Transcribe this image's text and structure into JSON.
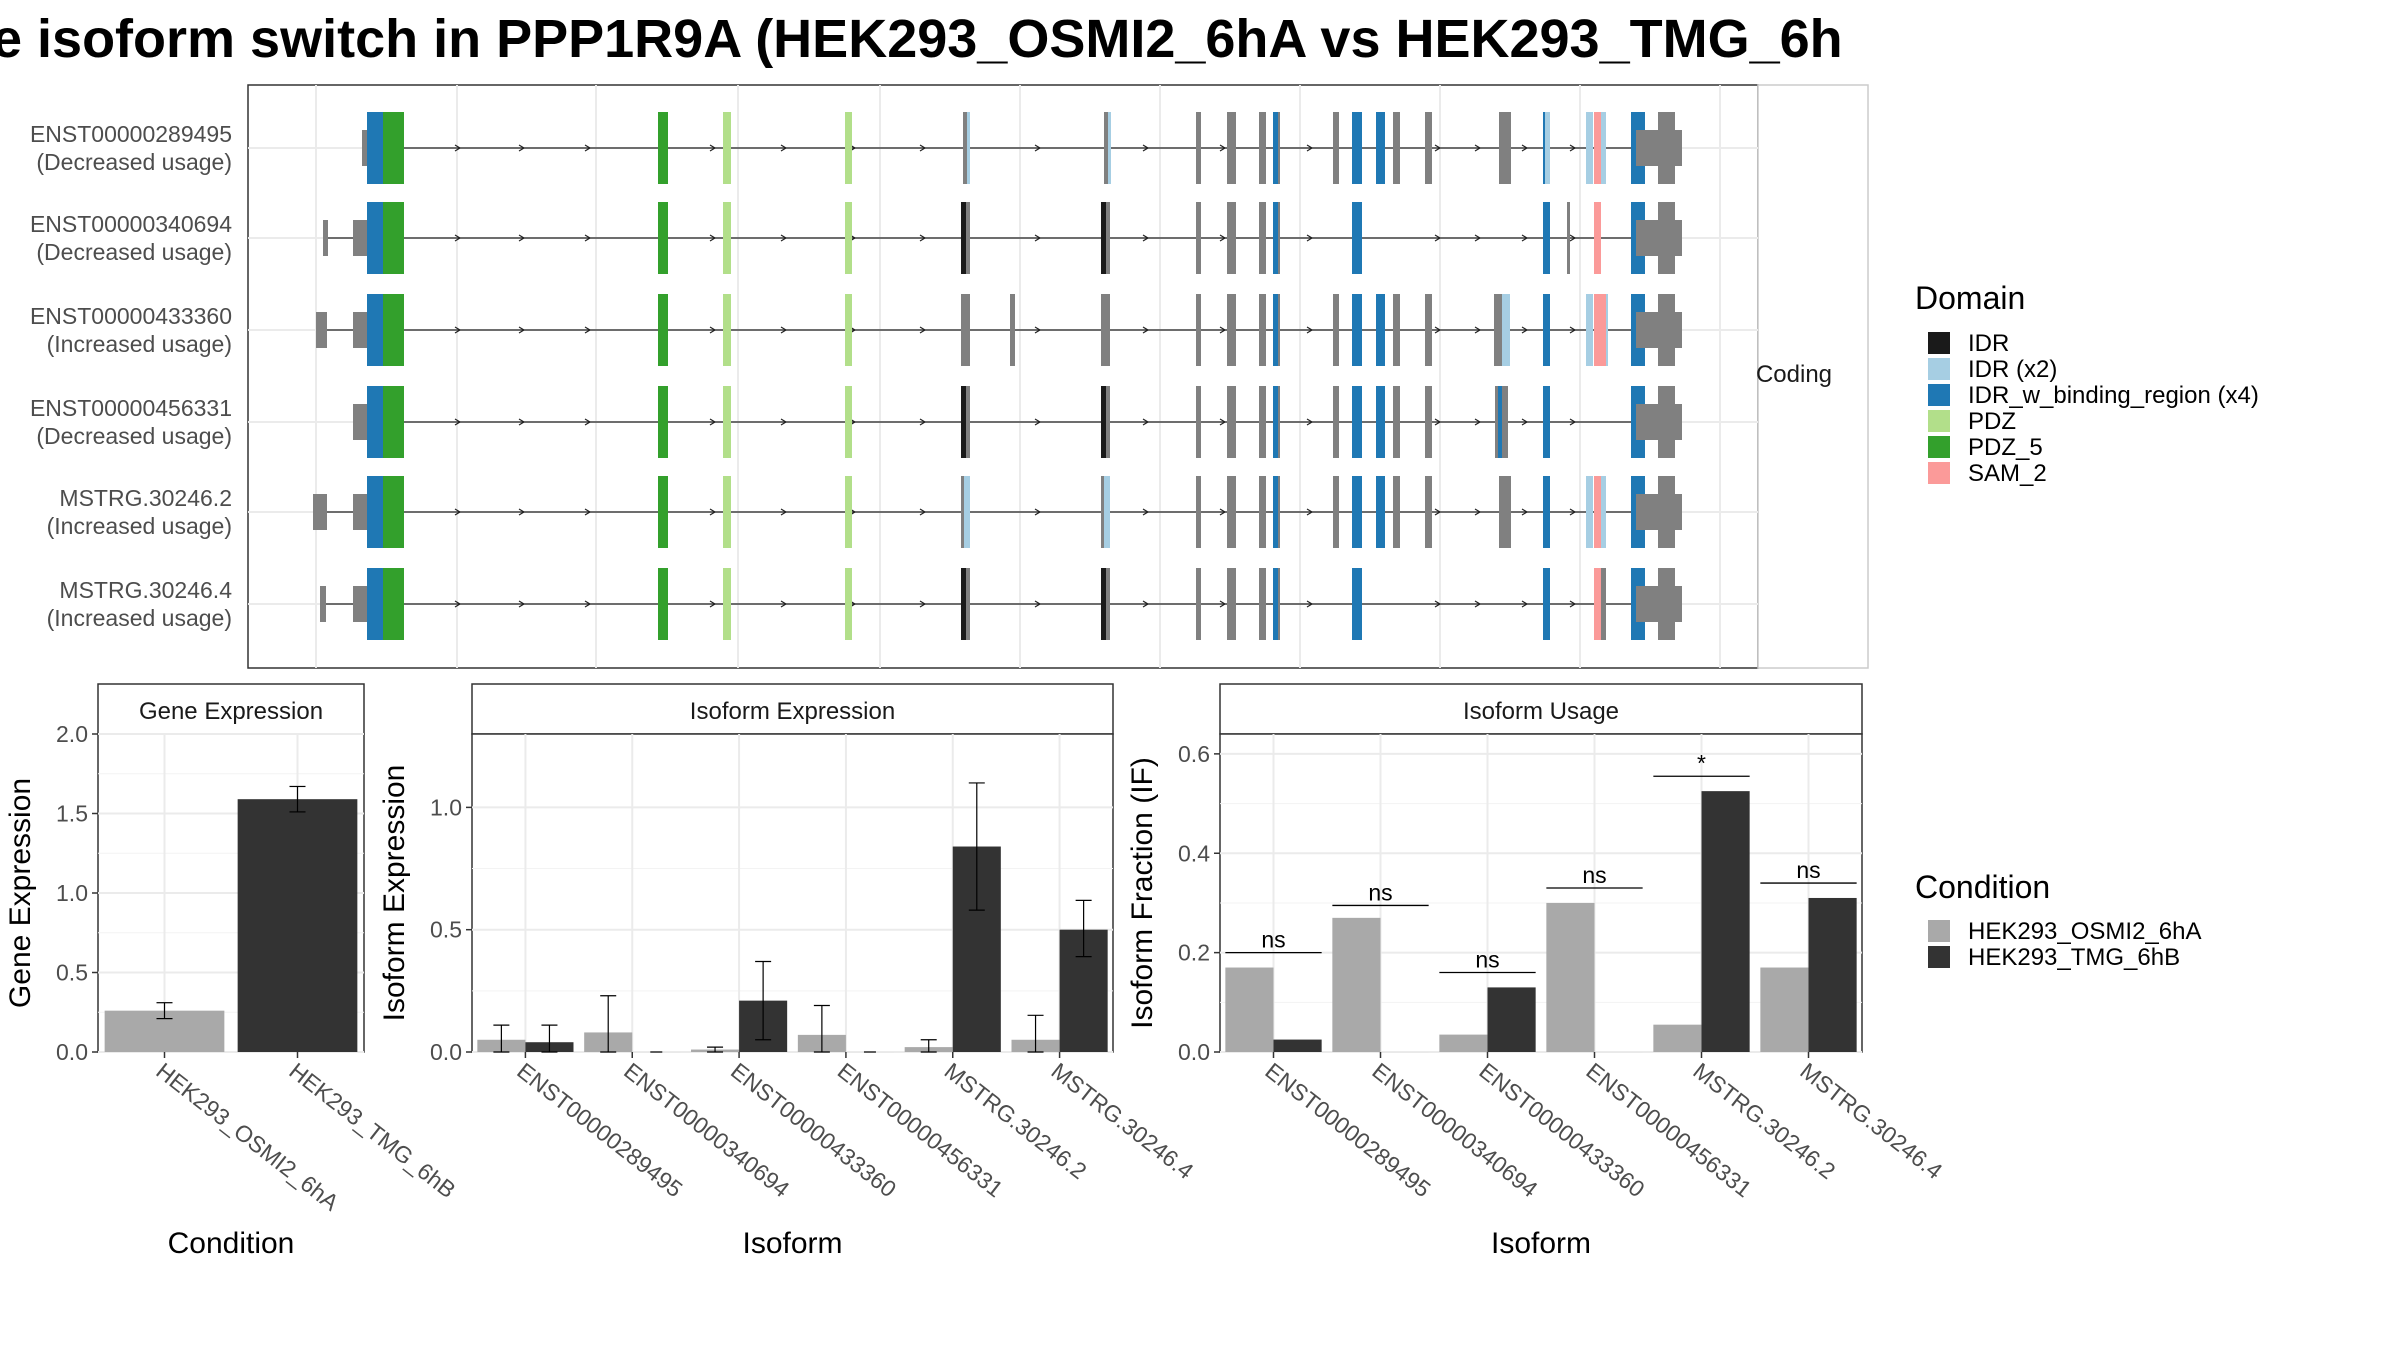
{
  "title": "e isoform switch in PPP1R9A (HEK293_OSMI2_6hA vs HEK293_TMG_6h",
  "colors": {
    "cond_a": "#a9a9a9",
    "cond_b": "#333333",
    "intron": "#222222",
    "exon_utr": "#808080",
    "domains": {
      "IDR": "#1a1a1a",
      "IDR (x2)": "#a6cee3",
      "IDR_w_binding_region (x4)": "#1f78b4",
      "PDZ": "#b2df8a",
      "PDZ_5": "#33a02c",
      "SAM_2": "#fb9a99"
    }
  },
  "structure_panel": {
    "strip_label": "Coding",
    "transcripts": [
      {
        "id": "ENST00000289495",
        "usage": "(Decreased usage)"
      },
      {
        "id": "ENST00000340694",
        "usage": "(Decreased usage)"
      },
      {
        "id": "ENST00000433360",
        "usage": "(Increased usage)"
      },
      {
        "id": "ENST00000456331",
        "usage": "(Decreased usage)"
      },
      {
        "id": "MSTRG.30246.2",
        "usage": "(Increased usage)"
      },
      {
        "id": "MSTRG.30246.4",
        "usage": "(Increased usage)"
      }
    ]
  },
  "legend_domain": {
    "title": "Domain",
    "items": [
      "IDR",
      "IDR (x2)",
      "IDR_w_binding_region (x4)",
      "PDZ",
      "PDZ_5",
      "SAM_2"
    ]
  },
  "legend_condition": {
    "title": "Condition",
    "items": [
      "HEK293_OSMI2_6hA",
      "HEK293_TMG_6hB"
    ]
  },
  "chart_data": [
    {
      "type": "bar",
      "title": "Gene Expression",
      "xlabel": "Condition",
      "ylabel": "Gene Expression",
      "categories": [
        "HEK293_OSMI2_6hA",
        "HEK293_TMG_6hB"
      ],
      "values": [
        0.26,
        1.59
      ],
      "error": [
        [
          0.21,
          0.31
        ],
        [
          1.51,
          1.67
        ]
      ],
      "ylim": [
        0,
        2.0
      ],
      "yticks": [
        0.0,
        0.5,
        1.0,
        1.5,
        2.0
      ],
      "ytick_labels": [
        "0.0",
        "0.5",
        "1.0",
        "1.5",
        "2.0"
      ]
    },
    {
      "type": "bar",
      "title": "Isoform Expression",
      "xlabel": "Isoform",
      "ylabel": "Isoform Expression",
      "categories": [
        "ENST00000289495",
        "ENST00000340694",
        "ENST00000433360",
        "ENST00000456331",
        "MSTRG.30246.2",
        "MSTRG.30246.4"
      ],
      "series": [
        {
          "name": "HEK293_OSMI2_6hA",
          "values": [
            0.05,
            0.08,
            0.01,
            0.07,
            0.02,
            0.05
          ],
          "error": [
            [
              0.0,
              0.11
            ],
            [
              0.0,
              0.23
            ],
            [
              0.0,
              0.02
            ],
            [
              0.0,
              0.19
            ],
            [
              0.0,
              0.05
            ],
            [
              0.0,
              0.15
            ]
          ]
        },
        {
          "name": "HEK293_TMG_6hB",
          "values": [
            0.04,
            0.0,
            0.21,
            0.0,
            0.84,
            0.5
          ],
          "error": [
            [
              0.0,
              0.11
            ],
            [
              0.0,
              0.0
            ],
            [
              0.05,
              0.37
            ],
            [
              0.0,
              0.0
            ],
            [
              0.58,
              1.1
            ],
            [
              0.39,
              0.62
            ]
          ]
        }
      ],
      "ylim": [
        0,
        1.3
      ],
      "yticks": [
        0.0,
        0.5,
        1.0
      ],
      "ytick_labels": [
        "0.0",
        "0.5",
        "1.0"
      ]
    },
    {
      "type": "bar",
      "title": "Isoform Usage",
      "xlabel": "Isoform",
      "ylabel": "Isoform Fraction (IF)",
      "categories": [
        "ENST00000289495",
        "ENST00000340694",
        "ENST00000433360",
        "ENST00000456331",
        "MSTRG.30246.2",
        "MSTRG.30246.4"
      ],
      "series": [
        {
          "name": "HEK293_OSMI2_6hA",
          "values": [
            0.17,
            0.27,
            0.035,
            0.3,
            0.055,
            0.17
          ]
        },
        {
          "name": "HEK293_TMG_6hB",
          "values": [
            0.025,
            0.0,
            0.13,
            0.0,
            0.525,
            0.31
          ]
        }
      ],
      "annotations": [
        "ns",
        "ns",
        "ns",
        "ns",
        "*",
        "ns"
      ],
      "annotation_y": [
        0.2,
        0.295,
        0.16,
        0.33,
        0.555,
        0.34
      ],
      "ylim": [
        0,
        0.64
      ],
      "yticks": [
        0.0,
        0.2,
        0.4,
        0.6
      ],
      "ytick_labels": [
        "0.0",
        "0.2",
        "0.4",
        "0.6"
      ]
    }
  ]
}
